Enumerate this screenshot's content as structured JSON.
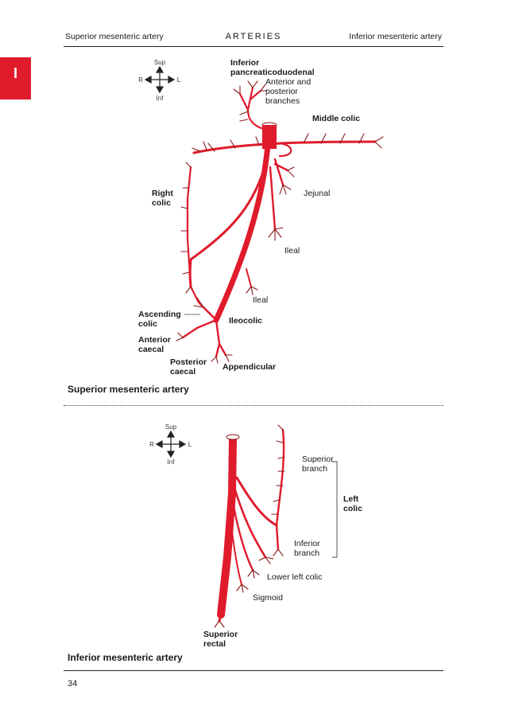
{
  "header": {
    "left": "Superior mesenteric artery",
    "center": "ARTERIES",
    "right": "Inferior mesenteric artery"
  },
  "section_tab": "I",
  "colors": {
    "artery": "#e01b2c",
    "outline": "#8a1a1a",
    "tab": "#e01b2c"
  },
  "compass": {
    "sup": "Sup",
    "inf": "Inf",
    "right": "R",
    "left": "L"
  },
  "superior": {
    "caption": "Superior mesenteric artery",
    "labels": {
      "inf_pancreatico_1": "Inferior",
      "inf_pancreatico_2": "pancreaticoduodenal",
      "ant_post_1": "Anterior and",
      "ant_post_2": "posterior",
      "ant_post_3": "branches",
      "middle_colic": "Middle colic",
      "right_colic_1": "Right",
      "right_colic_2": "colic",
      "jejunal": "Jejunal",
      "ileal_1": "Ileal",
      "ileal_2": "Ileal",
      "ileocolic": "Ileocolic",
      "ascending_1": "Ascending",
      "ascending_2": "colic",
      "anterior_caecal_1": "Anterior",
      "anterior_caecal_2": "caecal",
      "posterior_caecal_1": "Posterior",
      "posterior_caecal_2": "caecal",
      "appendicular": "Appendicular"
    }
  },
  "inferior": {
    "caption": "Inferior mesenteric artery",
    "labels": {
      "superior_branch_1": "Superior",
      "superior_branch_2": "branch",
      "left_colic_1": "Left",
      "left_colic_2": "colic",
      "inferior_branch_1": "Inferior",
      "inferior_branch_2": "branch",
      "lower_left_colic": "Lower left colic",
      "sigmoid": "Sigmoid",
      "superior_rectal_1": "Superior",
      "superior_rectal_2": "rectal"
    }
  },
  "page_number": "34"
}
